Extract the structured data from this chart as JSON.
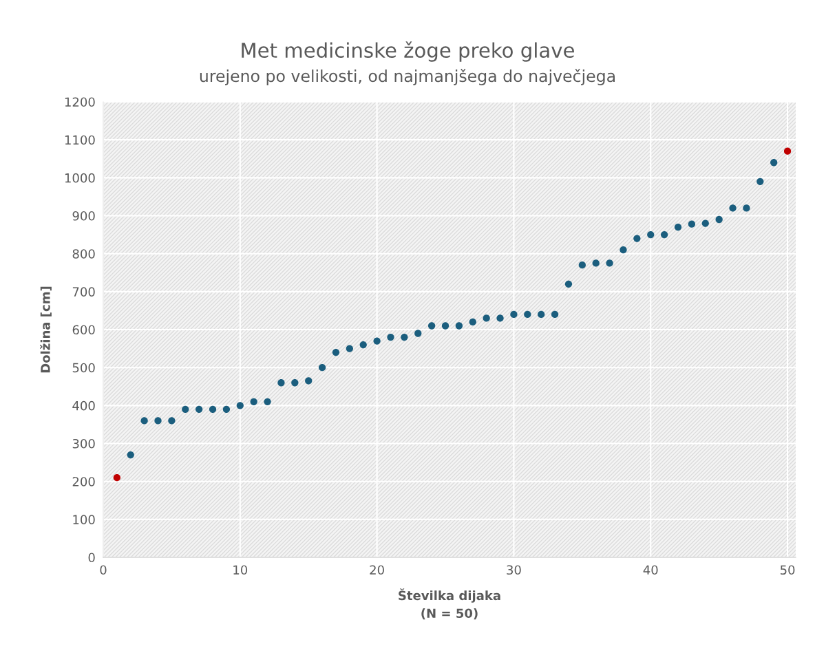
{
  "chart_data": {
    "type": "scatter",
    "title": "Met medicinske žoge preko glave",
    "subtitle": "urejeno po velikosti, od najmanjšega do največjega",
    "xlabel": "Številka dijaka\n(N = 50)",
    "ylabel": "Dolžina [cm]",
    "x": [
      1,
      2,
      3,
      4,
      5,
      6,
      7,
      8,
      9,
      10,
      11,
      12,
      13,
      14,
      15,
      16,
      17,
      18,
      19,
      20,
      21,
      22,
      23,
      24,
      25,
      26,
      27,
      28,
      29,
      30,
      31,
      32,
      33,
      34,
      35,
      36,
      37,
      38,
      39,
      40,
      41,
      42,
      43,
      44,
      45,
      46,
      47,
      48,
      49,
      50
    ],
    "values": [
      210,
      270,
      360,
      360,
      360,
      390,
      390,
      390,
      390,
      400,
      410,
      410,
      460,
      460,
      465,
      500,
      540,
      550,
      560,
      570,
      580,
      580,
      590,
      610,
      610,
      610,
      620,
      630,
      630,
      640,
      640,
      640,
      640,
      720,
      770,
      775,
      775,
      810,
      840,
      850,
      850,
      870,
      878,
      880,
      890,
      920,
      920,
      990,
      1040,
      1070
    ],
    "colors": [
      "#c00000",
      "#1b5e7e",
      "#1b5e7e",
      "#1b5e7e",
      "#1b5e7e",
      "#1b5e7e",
      "#1b5e7e",
      "#1b5e7e",
      "#1b5e7e",
      "#1b5e7e",
      "#1b5e7e",
      "#1b5e7e",
      "#1b5e7e",
      "#1b5e7e",
      "#1b5e7e",
      "#1b5e7e",
      "#1b5e7e",
      "#1b5e7e",
      "#1b5e7e",
      "#1b5e7e",
      "#1b5e7e",
      "#1b5e7e",
      "#1b5e7e",
      "#1b5e7e",
      "#1b5e7e",
      "#1b5e7e",
      "#1b5e7e",
      "#1b5e7e",
      "#1b5e7e",
      "#1b5e7e",
      "#1b5e7e",
      "#1b5e7e",
      "#1b5e7e",
      "#1b5e7e",
      "#1b5e7e",
      "#1b5e7e",
      "#1b5e7e",
      "#1b5e7e",
      "#1b5e7e",
      "#1b5e7e",
      "#1b5e7e",
      "#1b5e7e",
      "#1b5e7e",
      "#1b5e7e",
      "#1b5e7e",
      "#1b5e7e",
      "#1b5e7e",
      "#1b5e7e",
      "#1b5e7e",
      "#c00000"
    ],
    "xlim": [
      0,
      50.6
    ],
    "xticks": [
      0,
      10,
      20,
      30,
      40,
      50
    ],
    "ylim": [
      0,
      1200
    ],
    "yticks": [
      0,
      100,
      200,
      300,
      400,
      500,
      600,
      700,
      800,
      900,
      1000,
      1100,
      1200
    ],
    "grid": true,
    "marker": "circle"
  }
}
